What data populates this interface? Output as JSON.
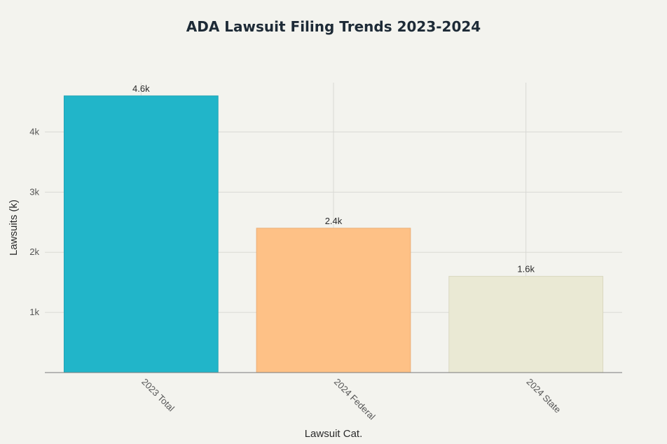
{
  "chart_data": {
    "type": "bar",
    "title": "ADA Lawsuit Filing Trends 2023-2024",
    "xlabel": "Lawsuit Cat.",
    "ylabel": "Lawsuits (k)",
    "categories": [
      "2023 Total",
      "2024 Federal",
      "2024 State"
    ],
    "values": [
      4600,
      2400,
      1600
    ],
    "data_labels": [
      "4.6k",
      "2.4k",
      "1.6k"
    ],
    "colors": [
      "#21b5c9",
      "#fec186",
      "#eae9d4"
    ],
    "y_ticks": [
      1000,
      2000,
      3000,
      4000
    ],
    "y_tick_labels": [
      "1k",
      "2k",
      "3k",
      "4k"
    ],
    "ylim": [
      0,
      4820
    ],
    "grid": true,
    "legend": "none"
  }
}
